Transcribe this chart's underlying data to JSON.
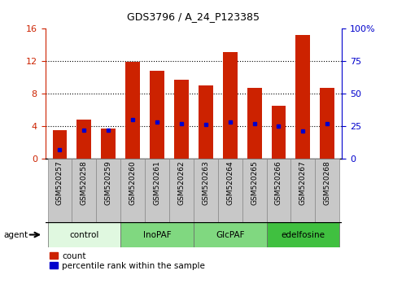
{
  "title": "GDS3796 / A_24_P123385",
  "categories": [
    "GSM520257",
    "GSM520258",
    "GSM520259",
    "GSM520260",
    "GSM520261",
    "GSM520262",
    "GSM520263",
    "GSM520264",
    "GSM520265",
    "GSM520266",
    "GSM520267",
    "GSM520268"
  ],
  "bar_values": [
    3.5,
    4.8,
    3.7,
    11.9,
    10.8,
    9.7,
    9.0,
    13.1,
    8.7,
    6.5,
    15.2,
    8.7
  ],
  "pct_values": [
    7,
    22,
    22,
    30,
    28,
    27,
    26,
    28,
    27,
    25,
    21,
    27
  ],
  "bar_color": "#CC2200",
  "pct_color": "#0000CC",
  "ylim_left": [
    0,
    16
  ],
  "ylim_right": [
    0,
    100
  ],
  "yticks_left": [
    0,
    4,
    8,
    12,
    16
  ],
  "yticks_right": [
    0,
    25,
    50,
    75,
    100
  ],
  "yticklabels_right": [
    "0",
    "25",
    "50",
    "75",
    "100%"
  ],
  "grid_values": [
    4,
    8,
    12
  ],
  "agent_groups": [
    {
      "label": "control",
      "start": 0,
      "end": 2,
      "color": "#e0f8e0"
    },
    {
      "label": "InoPAF",
      "start": 3,
      "end": 5,
      "color": "#80d880"
    },
    {
      "label": "GlcPAF",
      "start": 6,
      "end": 8,
      "color": "#80d880"
    },
    {
      "label": "edelfosine",
      "start": 9,
      "end": 11,
      "color": "#40c040"
    }
  ],
  "tick_color_left": "#CC2200",
  "tick_color_right": "#0000CC",
  "xtick_bg_color": "#c8c8c8",
  "xtick_border_color": "#888888",
  "legend_count_label": "count",
  "legend_pct_label": "percentile rank within the sample",
  "bar_width": 0.6
}
